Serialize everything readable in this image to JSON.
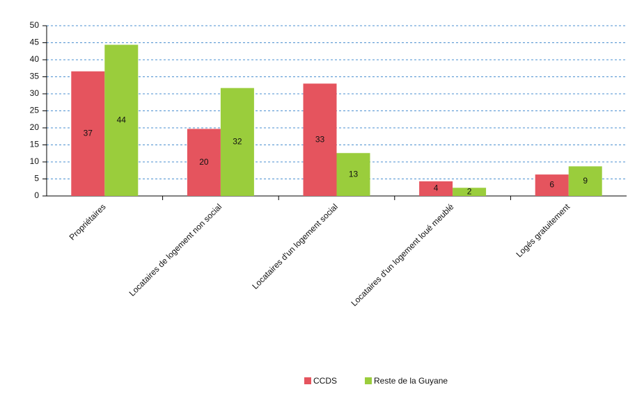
{
  "chart_data": {
    "type": "bar",
    "categories": [
      "Propriétaires",
      "Locataires de logement non social",
      "Locataires d'un logement social",
      "Locataires d'un logement loué meublé",
      "Logés gratuitement"
    ],
    "series": [
      {
        "name": "CCDS",
        "color": "#e5545e",
        "values": [
          36.6,
          19.7,
          33,
          4.3,
          6.3
        ],
        "value_labels": [
          "37",
          "20",
          "33",
          "4",
          "6"
        ]
      },
      {
        "name": "Reste de la Guyane",
        "color": "#9acd3c",
        "values": [
          44.4,
          31.7,
          12.6,
          2.4,
          8.7
        ],
        "value_labels": [
          "44",
          "32",
          "13",
          "2",
          "9"
        ]
      }
    ],
    "ylim": [
      0,
      50
    ],
    "yticks": [
      0,
      5,
      10,
      15,
      20,
      25,
      30,
      35,
      40,
      45,
      50
    ],
    "grid": true,
    "legend": "bottom"
  }
}
